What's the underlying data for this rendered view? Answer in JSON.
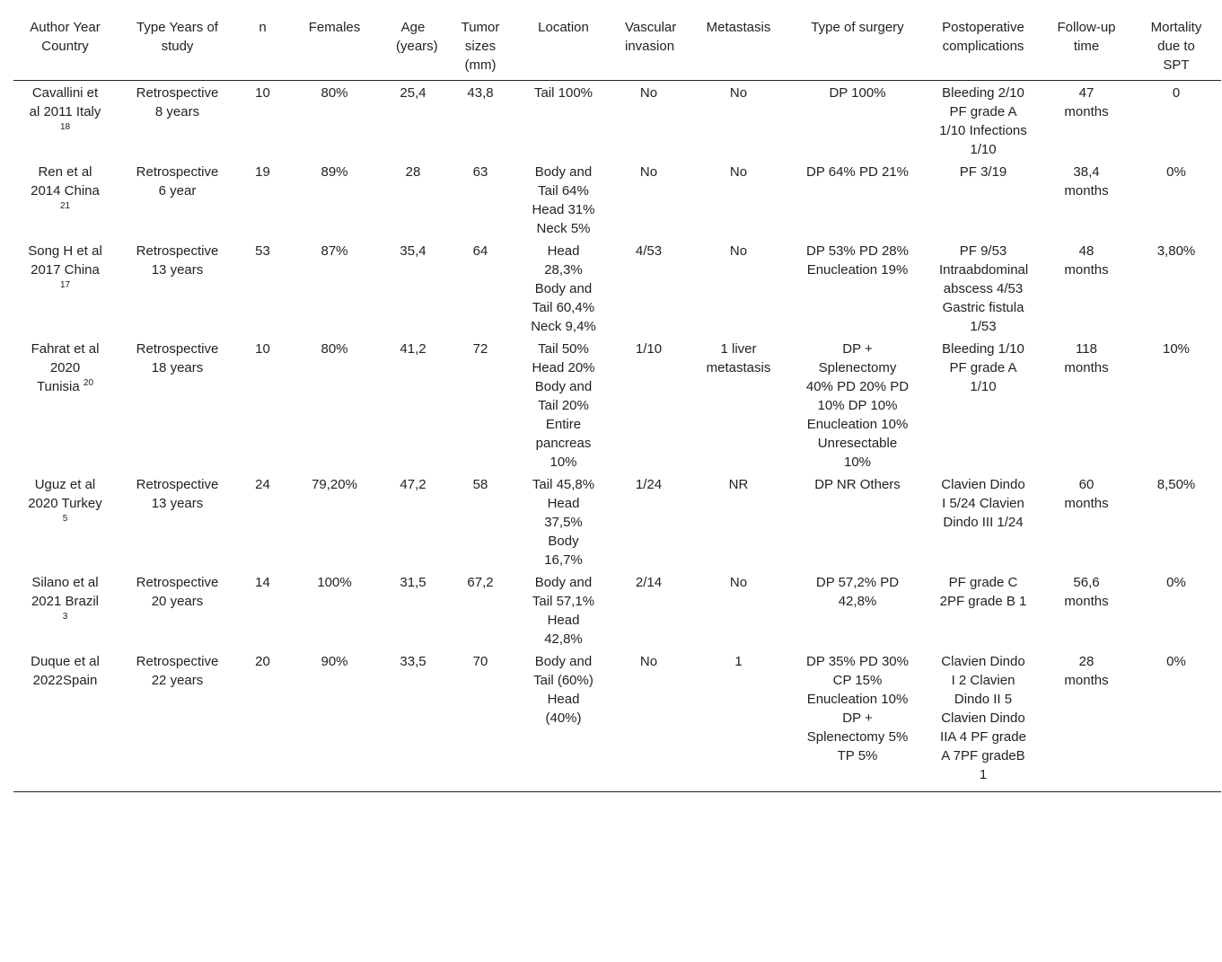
{
  "table": {
    "headers": [
      "Author Year Country",
      "Type Years of study",
      "n",
      "Females",
      "Age (years)",
      "Tumor sizes (mm)",
      "Location",
      "Vascular invasion",
      "Metastasis",
      "Type of surgery",
      "Postoperative complications",
      "Follow-up time",
      "Mortality due to SPT"
    ],
    "rows": [
      [
        {
          "text": "Cavallini et al 2011 Italy",
          "ref": "18"
        },
        "Retrospective 8 years",
        "10",
        "80%",
        "25,4",
        "43,8",
        "Tail 100%",
        "No",
        "No",
        "DP 100%",
        "Bleeding 2/10 PF grade A 1/10 Infections 1/10",
        "47 months",
        "0"
      ],
      [
        {
          "text": "Ren et al 2014 China",
          "ref": "21"
        },
        "Retrospective 6 year",
        "19",
        "89%",
        "28",
        "63",
        "Body and Tail 64% Head 31% Neck 5%",
        "No",
        "No",
        "DP 64% PD 21%",
        "PF 3/19",
        "38,4 months",
        "0%"
      ],
      [
        {
          "text": "Song H et al 2017 China",
          "ref": "17"
        },
        "Retrospective 13 years",
        "53",
        "87%",
        "35,4",
        "64",
        "Head 28,3% Body and Tail 60,4% Neck 9,4%",
        "4/53",
        "No",
        "DP 53% PD 28% Enucleation 19%",
        "PF 9/53 Intraabdominal abscess 4/53 Gastric fistula 1/53",
        "48 months",
        "3,80%"
      ],
      [
        {
          "text": "Fahrat et al 2020 Tunisia",
          "ref": "20"
        },
        "Retrospective 18 years",
        "10",
        "80%",
        "41,2",
        "72",
        "Tail 50% Head 20% Body and Tail 20% Entire pancreas 10%",
        "1/10",
        "1 liver metastasis",
        "DP + Splenectomy 40% PD 20% PD 10% DP 10% Enucleation 10% Unresectable 10%",
        "Bleeding 1/10 PF grade A 1/10",
        "118 months",
        "10%"
      ],
      [
        {
          "text": "Uguz et al 2020 Turkey",
          "ref": "5"
        },
        "Retrospective 13 years",
        "24",
        "79,20%",
        "47,2",
        "58",
        "Tail 45,8% Head 37,5% Body 16,7%",
        "1/24",
        "NR",
        "DP NR Others",
        "Clavien Dindo I 5/24 Clavien Dindo III 1/24",
        "60 months",
        "8,50%"
      ],
      [
        {
          "text": "Silano et al 2021 Brazil",
          "ref": "3"
        },
        "Retrospective 20 years",
        "14",
        "100%",
        "31,5",
        "67,2",
        "Body and Tail 57,1% Head 42,8%",
        "2/14",
        "No",
        "DP 57,2% PD 42,8%",
        "PF grade C 2PF grade B 1",
        "56,6 months",
        "0%"
      ],
      [
        "Duque et al 2022Spain",
        "Retrospective 22 years",
        "20",
        "90%",
        "33,5",
        "70",
        "Body and Tail (60%) Head (40%)",
        "No",
        "1",
        "DP 35% PD 30% CP 15% Enucleation 10% DP + Splenectomy 5% TP 5%",
        "Clavien Dindo I 2 Clavien Dindo II 5 Clavien Dindo IIA 4 PF grade A 7PF gradeB 1",
        "28 months",
        "0%"
      ]
    ]
  }
}
